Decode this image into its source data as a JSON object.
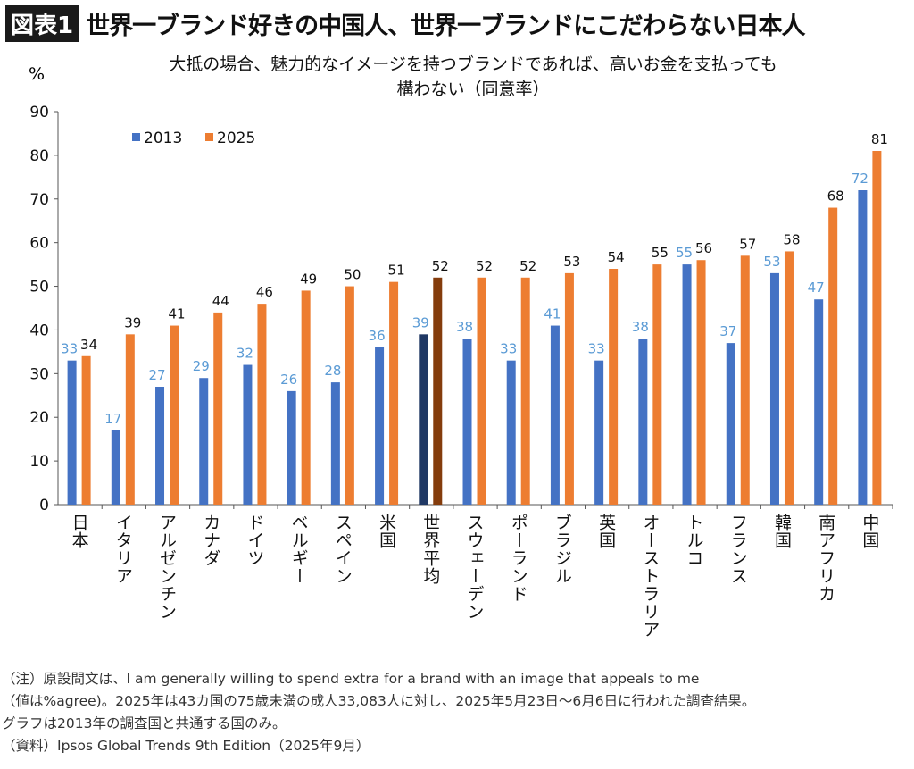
{
  "header": {
    "badge": "図表1",
    "title": "世界一ブランド好きの中国人、世界一ブランドにこだわらない日本人"
  },
  "chart_data": {
    "type": "bar",
    "title": "大抵の場合、魅力的なイメージを持つブランドであれば、高いお金を支払っても構わない（同意率）",
    "title_lines": [
      "大抵の場合、魅力的なイメージを持つブランドであれば、高いお金を支払っても",
      "構わない（同意率）"
    ],
    "ylabel": "%",
    "ylim": [
      0,
      90
    ],
    "yticks": [
      0,
      10,
      20,
      30,
      40,
      50,
      60,
      70,
      80,
      90
    ],
    "legend_position": "top-left",
    "grid": false,
    "categories": [
      "日本",
      "イタリア",
      "アルゼンチン",
      "カナダ",
      "ドイツ",
      "ベルギー",
      "スペイン",
      "米国",
      "世界平均",
      "スウェーデン",
      "ポーランド",
      "ブラジル",
      "英国",
      "オーストラリア",
      "トルコ",
      "フランス",
      "韓国",
      "南アフリカ",
      "中国"
    ],
    "highlight_category": "世界平均",
    "series": [
      {
        "name": "2013",
        "color": "#4472C4",
        "highlight_color": "#1F3864",
        "label_color": "#5B9BD5",
        "values": [
          33,
          17,
          27,
          29,
          32,
          26,
          28,
          36,
          39,
          38,
          33,
          41,
          33,
          38,
          55,
          37,
          53,
          47,
          72
        ]
      },
      {
        "name": "2025",
        "color": "#ED7D31",
        "highlight_color": "#843C0C",
        "label_color": "#111111",
        "values": [
          34,
          39,
          41,
          44,
          46,
          49,
          50,
          51,
          52,
          52,
          52,
          53,
          54,
          55,
          56,
          57,
          58,
          68,
          81
        ]
      }
    ]
  },
  "notes": [
    "（注）原設問文は、I am generally willing to spend extra for a brand with an image that appeals to me",
    "（値は%agree)。2025年は43カ国の75歳未満の成人33,083人に対し、2025年5月23日〜6月6日に行われた調査結果。",
    "グラフは2013年の調査国と共通する国のみ。",
    "（資料）Ipsos Global Trends 9th Edition（2025年9月）"
  ]
}
